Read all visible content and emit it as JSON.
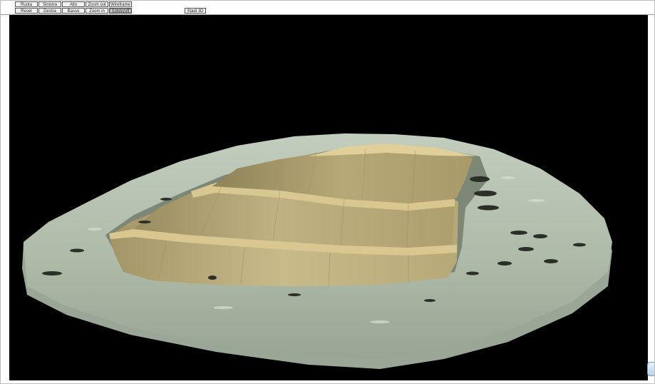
{
  "toolbar": {
    "row1": [
      "Ruota",
      "Sinistra",
      "Alto",
      "Zoom out",
      "Wireframe"
    ],
    "row2": [
      "Reset",
      "Destra",
      "Basso",
      "Zoom in",
      "Solido/off"
    ],
    "export_label": "Stadi 3D",
    "active_button": "Solido/off"
  },
  "scene": {
    "terrain_color": "#aebba9",
    "terrain_shadow_color": "#8f9b8b",
    "pit_color": "#bcad7d",
    "bench_color": "#d8c790",
    "background_color": "#000000"
  },
  "corner_icon": "app-logo-icon"
}
